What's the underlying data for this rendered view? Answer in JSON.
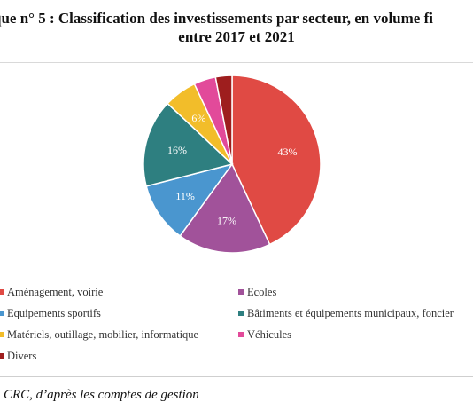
{
  "title_line1": "que n° 5 :  Classification des investissements par secteur, en volume fi",
  "title_line2": "entre 2017 et 2021",
  "source_prefix": "",
  "source_text": "CRC, d’après les comptes de gestion",
  "chart_data": {
    "type": "pie",
    "title": "que n° 5 :  Classification des investissements par secteur, en volume fi entre 2017 et 2021",
    "series": [
      {
        "name": "Aménagement, voirie",
        "value": 43,
        "label": "43%",
        "color": "#e04a44"
      },
      {
        "name": "Ecoles",
        "value": 17,
        "label": "17%",
        "color": "#a1529a"
      },
      {
        "name": "Equipements sportifs",
        "value": 11,
        "label": "11%",
        "color": "#4a96cf"
      },
      {
        "name": "Bâtiments et équipements municipaux, foncier",
        "value": 16,
        "label": "16%",
        "color": "#2e7f80"
      },
      {
        "name": "Matériels, outillage, mobilier, informatique",
        "value": 6,
        "label": "6%",
        "color": "#f2bd2a"
      },
      {
        "name": "Véhicules",
        "value": 4,
        "label": "",
        "color": "#e24a9a"
      },
      {
        "name": "Divers",
        "value": 3,
        "label": "",
        "color": "#9e1e1e"
      }
    ],
    "legend_position": "bottom"
  }
}
